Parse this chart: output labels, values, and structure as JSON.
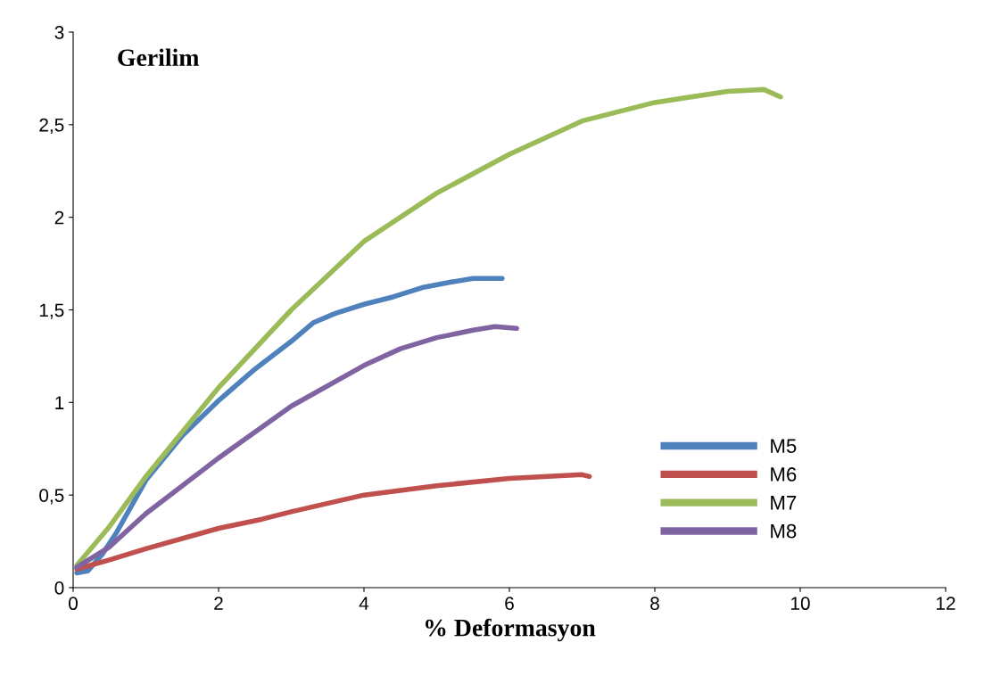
{
  "chart_data": {
    "type": "line",
    "title": "Gerilim",
    "xlabel": "% Deformasyon",
    "xlim": [
      0,
      12
    ],
    "xticks": [
      0,
      2,
      4,
      6,
      8,
      10,
      12
    ],
    "ylim": [
      0,
      3
    ],
    "yticks": [
      0,
      {
        "value": 0.5,
        "label": "0,5"
      },
      1,
      {
        "value": 1.5,
        "label": "1,5"
      },
      2,
      {
        "value": 2.5,
        "label": "2,5"
      },
      3
    ],
    "grid": false,
    "legend": "lower right",
    "marker": "none",
    "line_style": "solid",
    "series": [
      {
        "name": "M5",
        "color": "#4f81bd",
        "x": [
          0.05,
          0.2,
          0.4,
          0.6,
          1,
          1.5,
          2,
          2.5,
          3,
          3.3,
          3.6,
          4,
          4.4,
          4.8,
          5.2,
          5.5,
          5.9
        ],
        "values": [
          0.08,
          0.09,
          0.18,
          0.3,
          0.58,
          0.82,
          1.01,
          1.18,
          1.33,
          1.43,
          1.48,
          1.53,
          1.57,
          1.62,
          1.65,
          1.67,
          1.67
        ]
      },
      {
        "name": "M6",
        "color": "#c0504d",
        "x": [
          0.05,
          0.5,
          1,
          2,
          2.6,
          3,
          4,
          5,
          6,
          7,
          7.1
        ],
        "values": [
          0.1,
          0.15,
          0.21,
          0.32,
          0.37,
          0.41,
          0.5,
          0.55,
          0.59,
          0.61,
          0.6
        ]
      },
      {
        "name": "M7",
        "color": "#9bbb59",
        "x": [
          0.05,
          0.5,
          1,
          2,
          3,
          4,
          5,
          6,
          7,
          8,
          9,
          9.5,
          9.73
        ],
        "values": [
          0.12,
          0.33,
          0.6,
          1.08,
          1.5,
          1.87,
          2.13,
          2.34,
          2.52,
          2.62,
          2.68,
          2.69,
          2.65
        ]
      },
      {
        "name": "M8",
        "color": "#8064a2",
        "x": [
          0.05,
          0.5,
          1,
          2,
          3,
          4,
          4.5,
          5,
          5.5,
          5.8,
          6.1
        ],
        "values": [
          0.11,
          0.22,
          0.4,
          0.7,
          0.98,
          1.2,
          1.29,
          1.35,
          1.39,
          1.41,
          1.4
        ]
      }
    ]
  }
}
